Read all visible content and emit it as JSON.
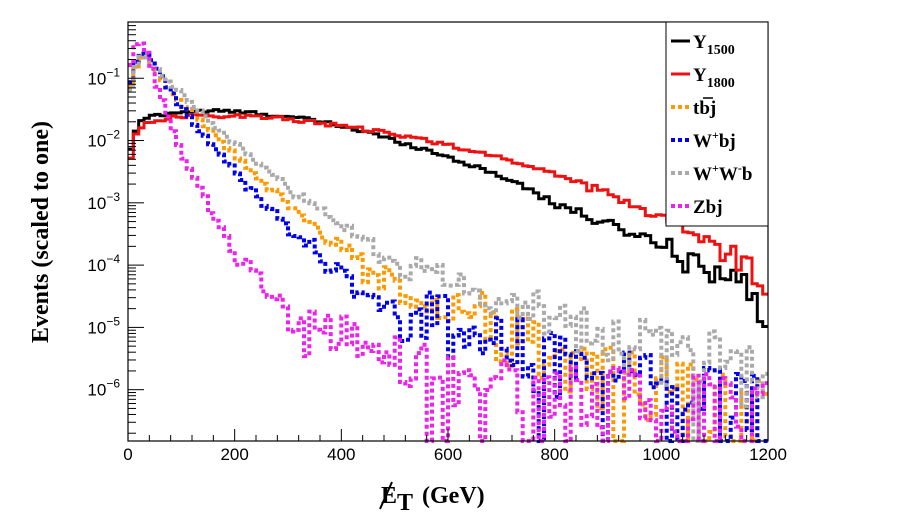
{
  "chart_data": {
    "type": "line",
    "style": "step-histogram",
    "xlabel": "E_T (GeV)",
    "xlabel_parts": {
      "main": "E",
      "sub": "T",
      "unit": "(GeV)"
    },
    "ylabel": "Events (scaled to one)",
    "xlim": [
      0,
      1200
    ],
    "ylog": true,
    "ylim": [
      1.5e-07,
      0.8
    ],
    "x_ticks": [
      0,
      200,
      400,
      600,
      800,
      1000,
      1200
    ],
    "x_tick_labels": [
      "0",
      "200",
      "400",
      "600",
      "800",
      "1000",
      "1200"
    ],
    "y_ticks": [
      1e-06,
      1e-05,
      0.0001,
      0.001,
      0.01,
      0.1
    ],
    "y_tick_base": "10",
    "y_tick_exponents": [
      "−6",
      "−5",
      "−4",
      "−3",
      "−2",
      "−1"
    ],
    "bin_width": 10,
    "legend_position": "top-right",
    "series": [
      {
        "name": "Y1500",
        "legend": {
          "main": "Y",
          "sub": "1500",
          "sup": ""
        },
        "color": "#000000",
        "dashed": false,
        "anchors": [
          [
            0,
            0.004
          ],
          [
            10,
            0.012
          ],
          [
            20,
            0.018
          ],
          [
            30,
            0.022
          ],
          [
            40,
            0.024
          ],
          [
            50,
            0.025
          ],
          [
            70,
            0.027
          ],
          [
            100,
            0.029
          ],
          [
            150,
            0.03
          ],
          [
            200,
            0.029
          ],
          [
            250,
            0.027
          ],
          [
            300,
            0.024
          ],
          [
            350,
            0.021
          ],
          [
            400,
            0.017
          ],
          [
            450,
            0.0135
          ],
          [
            500,
            0.01
          ],
          [
            550,
            0.0075
          ],
          [
            600,
            0.0055
          ],
          [
            650,
            0.0038
          ],
          [
            700,
            0.0027
          ],
          [
            750,
            0.0017
          ],
          [
            800,
            0.001
          ],
          [
            850,
            0.00065
          ],
          [
            900,
            0.00045
          ],
          [
            950,
            0.00032
          ],
          [
            1000,
            0.00022
          ],
          [
            1050,
            0.00013
          ],
          [
            1100,
            9e-05
          ],
          [
            1150,
            5e-05
          ],
          [
            1200,
            1.2e-05
          ]
        ]
      },
      {
        "name": "Y1800",
        "legend": {
          "main": "Y",
          "sub": "1800",
          "sup": ""
        },
        "color": "#ee1111",
        "dashed": false,
        "anchors": [
          [
            0,
            0.003
          ],
          [
            10,
            0.01
          ],
          [
            20,
            0.015
          ],
          [
            30,
            0.018
          ],
          [
            40,
            0.02
          ],
          [
            50,
            0.021
          ],
          [
            80,
            0.023
          ],
          [
            100,
            0.024
          ],
          [
            150,
            0.025
          ],
          [
            200,
            0.025
          ],
          [
            250,
            0.024
          ],
          [
            300,
            0.022
          ],
          [
            350,
            0.0195
          ],
          [
            400,
            0.017
          ],
          [
            450,
            0.0148
          ],
          [
            500,
            0.0125
          ],
          [
            550,
            0.0105
          ],
          [
            600,
            0.0085
          ],
          [
            650,
            0.0067
          ],
          [
            700,
            0.0052
          ],
          [
            750,
            0.004
          ],
          [
            800,
            0.0029
          ],
          [
            850,
            0.0021
          ],
          [
            900,
            0.0014
          ],
          [
            950,
            0.0009
          ],
          [
            1000,
            0.0006
          ],
          [
            1050,
            0.00035
          ],
          [
            1100,
            0.00022
          ],
          [
            1150,
            0.00013
          ],
          [
            1200,
            5e-05
          ]
        ]
      },
      {
        "name": "tbj",
        "legend": {
          "main": "tbj",
          "sub": "",
          "sup": ""
        },
        "color": "#ff9900",
        "dashed": true,
        "anchors": [
          [
            0,
            0.045
          ],
          [
            10,
            0.12
          ],
          [
            20,
            0.21
          ],
          [
            30,
            0.24
          ],
          [
            40,
            0.2
          ],
          [
            50,
            0.16
          ],
          [
            60,
            0.11
          ],
          [
            80,
            0.065
          ],
          [
            100,
            0.04
          ],
          [
            150,
            0.015
          ],
          [
            200,
            0.006
          ],
          [
            250,
            0.0022
          ],
          [
            300,
            0.0009
          ],
          [
            350,
            0.0004
          ],
          [
            400,
            0.00018
          ],
          [
            450,
            8e-05
          ],
          [
            500,
            4.5e-05
          ],
          [
            550,
            3e-05
          ],
          [
            600,
            2e-05
          ],
          [
            650,
            1.2e-05
          ],
          [
            700,
            8e-06
          ],
          [
            750,
            5e-06
          ],
          [
            800,
            3e-06
          ],
          [
            850,
            2e-06
          ],
          [
            900,
            1.5e-06
          ],
          [
            950,
            1.2e-06
          ],
          [
            1000,
            1e-06
          ],
          [
            1050,
            8e-07
          ],
          [
            1100,
            6e-07
          ],
          [
            1200,
            4e-07
          ]
        ]
      },
      {
        "name": "W+bj",
        "legend": {
          "main": "W",
          "sub": "",
          "sup": "+",
          "after": "bj"
        },
        "color": "#0000ee",
        "dashed": true,
        "anchors": [
          [
            0,
            0.05
          ],
          [
            10,
            0.14
          ],
          [
            20,
            0.22
          ],
          [
            30,
            0.26
          ],
          [
            40,
            0.22
          ],
          [
            50,
            0.17
          ],
          [
            60,
            0.12
          ],
          [
            80,
            0.065
          ],
          [
            100,
            0.035
          ],
          [
            150,
            0.01
          ],
          [
            200,
            0.0035
          ],
          [
            250,
            0.0011
          ],
          [
            300,
            0.0004
          ],
          [
            350,
            0.00017
          ],
          [
            400,
            7e-05
          ],
          [
            450,
            3.5e-05
          ],
          [
            500,
            2e-05
          ],
          [
            550,
            1.4e-05
          ],
          [
            600,
            1e-05
          ],
          [
            650,
            7e-06
          ],
          [
            700,
            5e-06
          ],
          [
            750,
            3.5e-06
          ],
          [
            800,
            2.5e-06
          ],
          [
            850,
            2e-06
          ],
          [
            900,
            1.5e-06
          ],
          [
            950,
            1.2e-06
          ],
          [
            1000,
            1e-06
          ],
          [
            1100,
            8e-07
          ],
          [
            1200,
            6e-07
          ]
        ]
      },
      {
        "name": "W+W-b",
        "legend": {
          "main": "W",
          "sub": "",
          "sup": "+",
          "after": "W",
          "sup2": "-",
          "after2": "b"
        },
        "color": "#aaaaaa",
        "dashed": true,
        "anchors": [
          [
            0,
            0.04
          ],
          [
            10,
            0.12
          ],
          [
            20,
            0.2
          ],
          [
            30,
            0.22
          ],
          [
            40,
            0.19
          ],
          [
            50,
            0.15
          ],
          [
            70,
            0.1
          ],
          [
            100,
            0.055
          ],
          [
            150,
            0.022
          ],
          [
            200,
            0.009
          ],
          [
            250,
            0.004
          ],
          [
            300,
            0.0018
          ],
          [
            350,
            0.0009
          ],
          [
            400,
            0.00045
          ],
          [
            450,
            0.00024
          ],
          [
            500,
            0.00013
          ],
          [
            550,
            8e-05
          ],
          [
            600,
            5.2e-05
          ],
          [
            650,
            3.5e-05
          ],
          [
            700,
            2.4e-05
          ],
          [
            750,
            1.7e-05
          ],
          [
            800,
            1.2e-05
          ],
          [
            850,
            8.5e-06
          ],
          [
            900,
            6e-06
          ],
          [
            950,
            4.5e-06
          ],
          [
            1000,
            3.5e-06
          ],
          [
            1100,
            2.5e-06
          ],
          [
            1200,
            1.5e-06
          ]
        ]
      },
      {
        "name": "Zbj",
        "legend": {
          "main": "Zbj",
          "sub": "",
          "sup": ""
        },
        "color": "#ee22ee",
        "dashed": true,
        "anchors": [
          [
            0,
            0.1
          ],
          [
            10,
            0.28
          ],
          [
            20,
            0.4
          ],
          [
            30,
            0.32
          ],
          [
            40,
            0.18
          ],
          [
            50,
            0.1
          ],
          [
            60,
            0.055
          ],
          [
            80,
            0.018
          ],
          [
            100,
            0.0065
          ],
          [
            150,
            0.0009
          ],
          [
            200,
            0.00017
          ],
          [
            250,
            5e-05
          ],
          [
            300,
            1.8e-05
          ],
          [
            350,
            8e-06
          ],
          [
            400,
            4.5e-06
          ],
          [
            450,
            3e-06
          ],
          [
            500,
            2.2e-06
          ],
          [
            600,
            1.5e-06
          ],
          [
            700,
            1.2e-06
          ],
          [
            800,
            1e-06
          ],
          [
            900,
            8e-07
          ],
          [
            1000,
            6e-07
          ],
          [
            1100,
            5e-07
          ],
          [
            1200,
            4e-07
          ]
        ]
      }
    ]
  }
}
